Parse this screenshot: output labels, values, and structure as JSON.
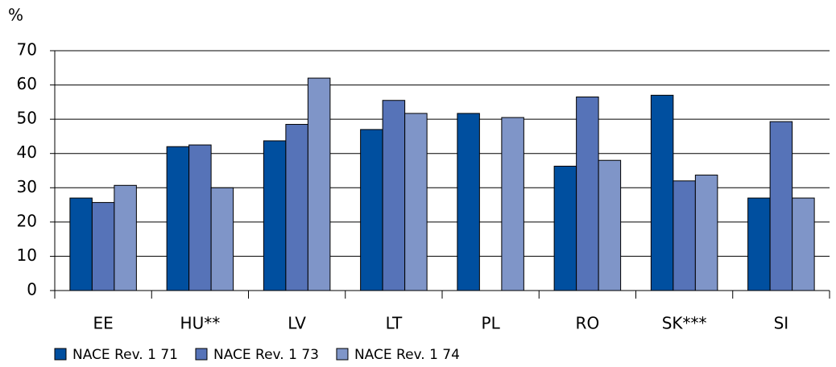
{
  "chart_data": {
    "type": "bar",
    "y_axis_label": "%",
    "categories": [
      "EE",
      "HU**",
      "LV",
      "LT",
      "PL",
      "RO",
      "SK***",
      "SI"
    ],
    "series": [
      {
        "name": "NACE Rev. 1 71",
        "color": "#004f9f",
        "values": [
          27,
          42,
          43.7,
          47,
          51.7,
          36.3,
          57,
          27
        ]
      },
      {
        "name": "NACE Rev. 1 73",
        "color": "#5673b8",
        "values": [
          25.7,
          42.5,
          48.5,
          55.5,
          null,
          56.5,
          32,
          49.3
        ]
      },
      {
        "name": "NACE Rev. 1 74",
        "color": "#7f95c8",
        "values": [
          30.7,
          30,
          62,
          51.7,
          50.5,
          38,
          33.7,
          27
        ]
      }
    ],
    "ylim": [
      0,
      70
    ],
    "yticks": [
      0,
      10,
      20,
      30,
      40,
      50,
      60,
      70
    ],
    "grid": true
  }
}
